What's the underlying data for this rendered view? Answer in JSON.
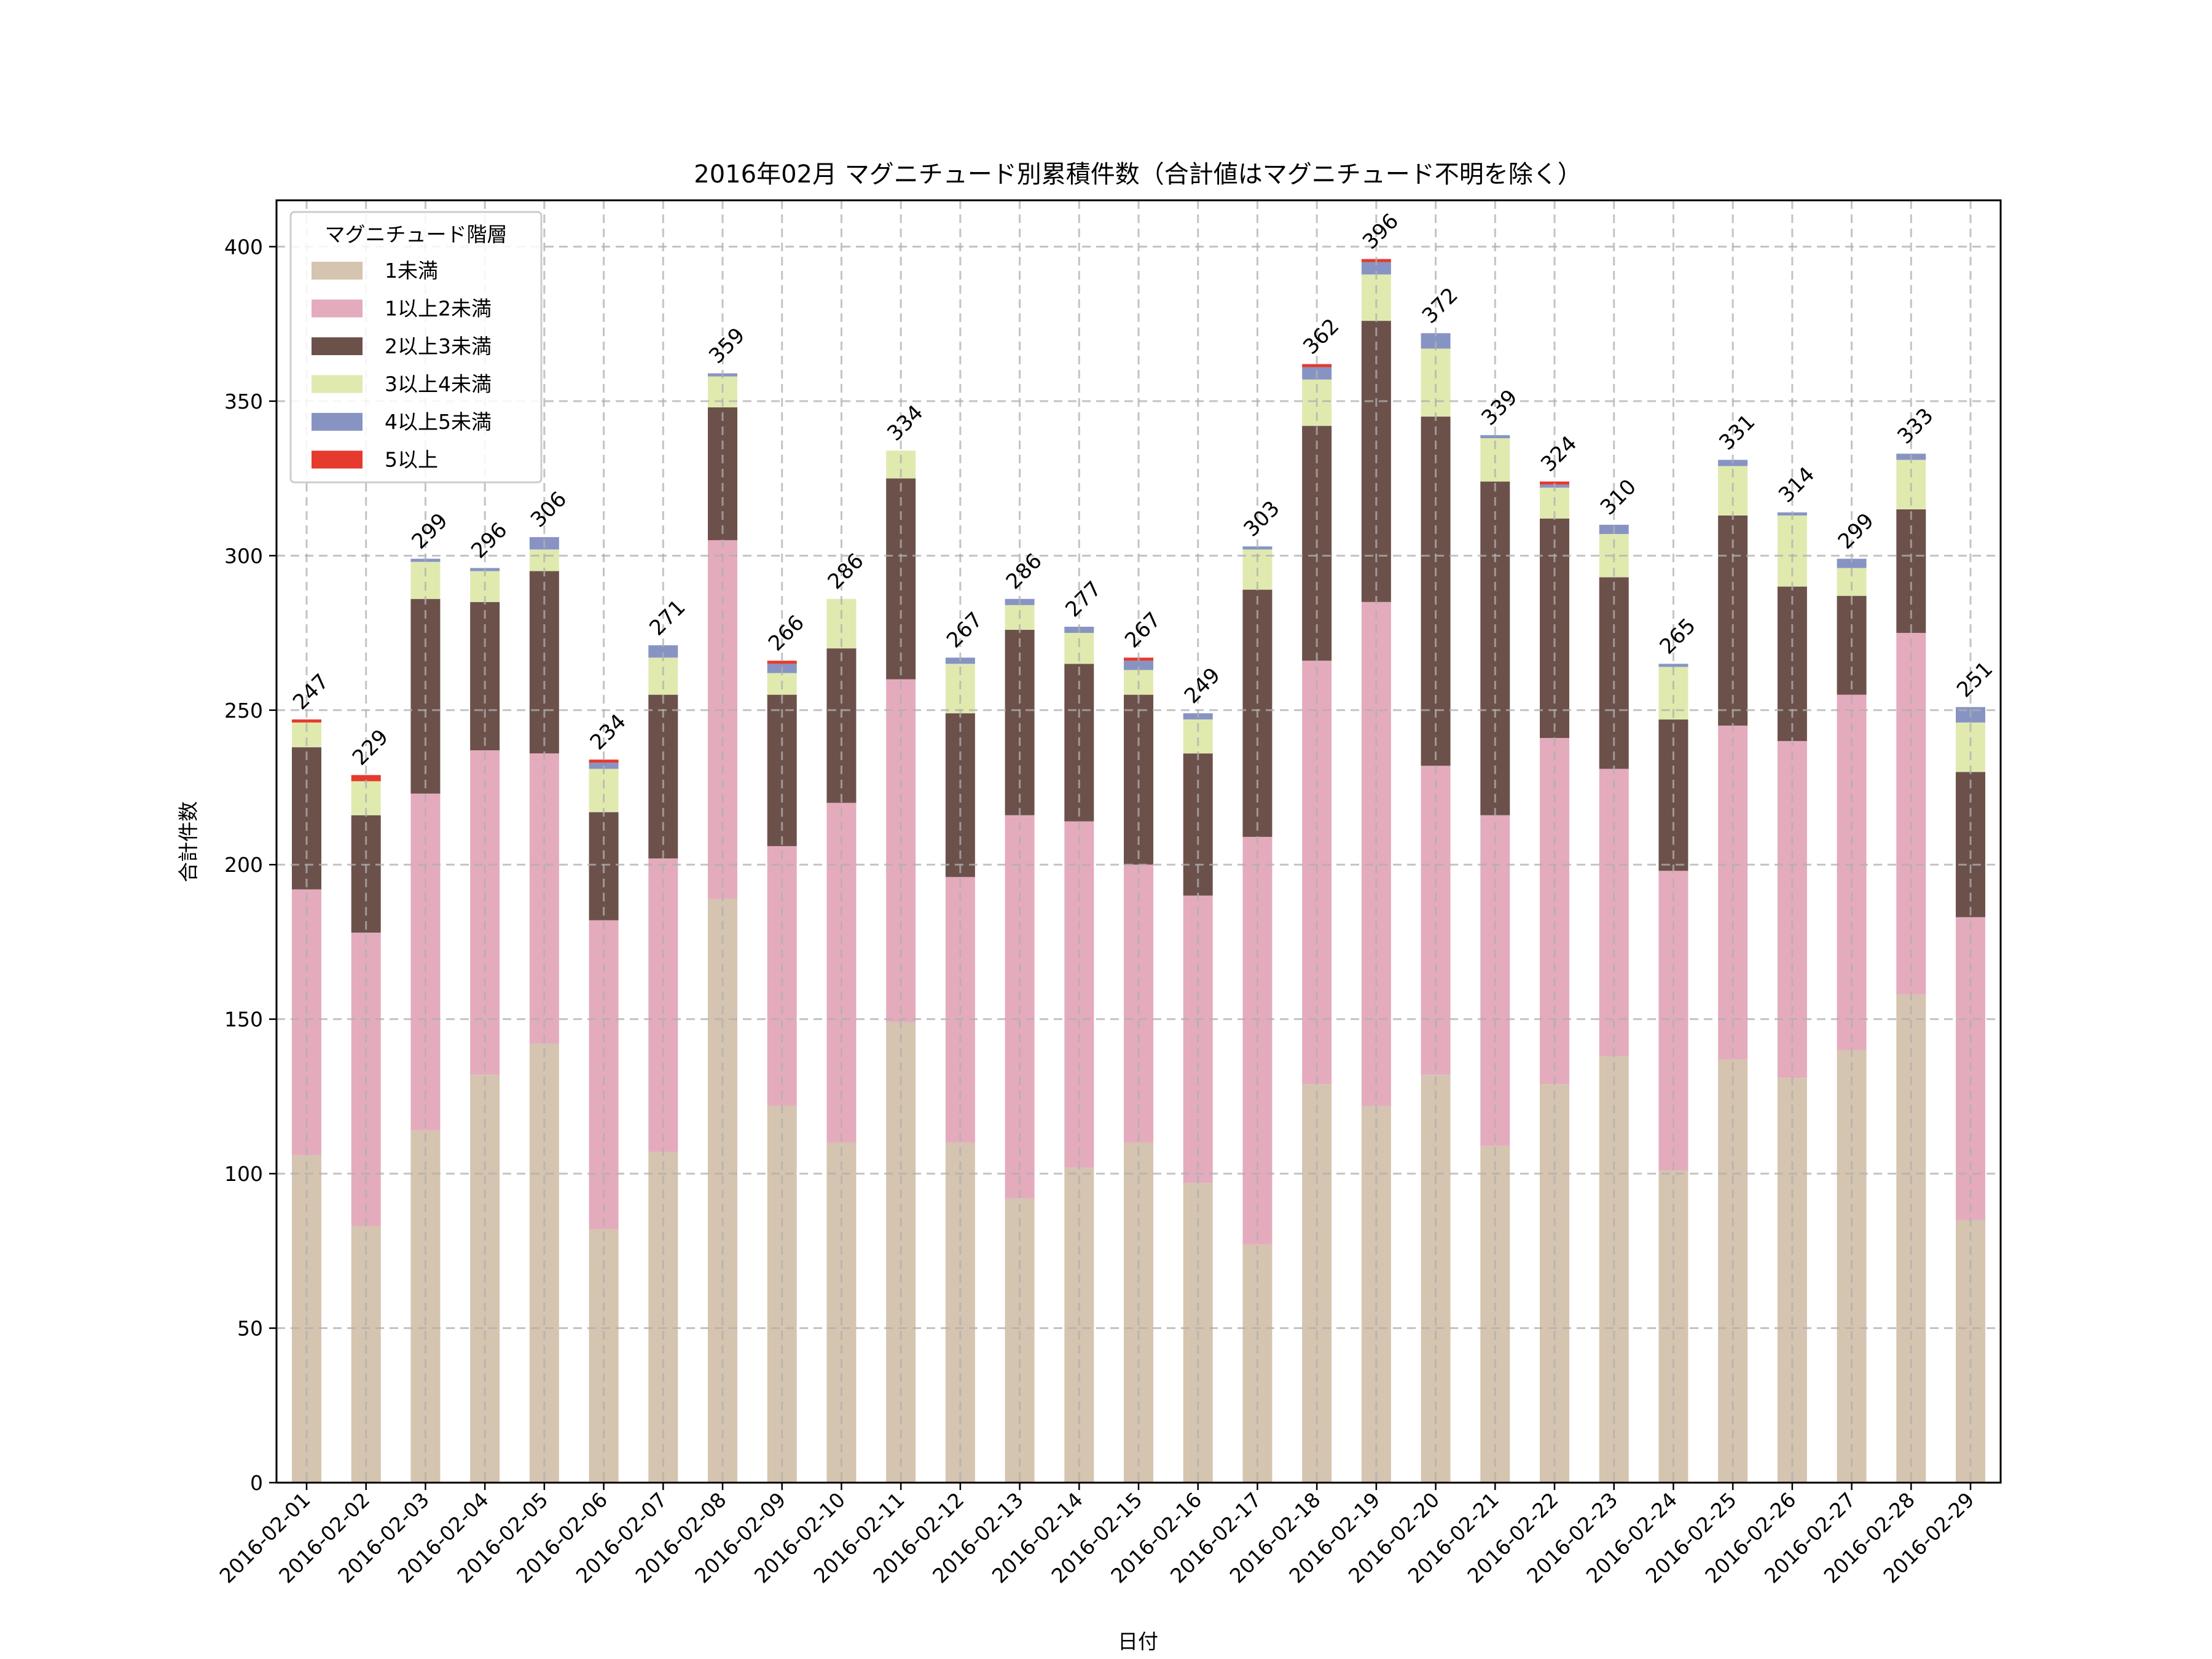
{
  "chart_data": {
    "type": "bar",
    "stacked": true,
    "title": "2016年02月 マグニチュード別累積件数（合計値はマグニチュード不明を除く）",
    "xlabel": "日付",
    "ylabel": "合計件数",
    "ylim": [
      0,
      415
    ],
    "yticks": [
      0,
      50,
      100,
      150,
      200,
      250,
      300,
      350,
      400
    ],
    "grid": true,
    "legend": {
      "title": "マグニチュード階層",
      "position": "top-left"
    },
    "categories": [
      "2016-02-01",
      "2016-02-02",
      "2016-02-03",
      "2016-02-04",
      "2016-02-05",
      "2016-02-06",
      "2016-02-07",
      "2016-02-08",
      "2016-02-09",
      "2016-02-10",
      "2016-02-11",
      "2016-02-12",
      "2016-02-13",
      "2016-02-14",
      "2016-02-15",
      "2016-02-16",
      "2016-02-17",
      "2016-02-18",
      "2016-02-19",
      "2016-02-20",
      "2016-02-21",
      "2016-02-22",
      "2016-02-23",
      "2016-02-24",
      "2016-02-25",
      "2016-02-26",
      "2016-02-27",
      "2016-02-28",
      "2016-02-29"
    ],
    "series": [
      {
        "name": "1未満",
        "color": "#d5c4af",
        "values": [
          106,
          83,
          114,
          132,
          142,
          82,
          107,
          189,
          122,
          110,
          149,
          110,
          92,
          102,
          110,
          97,
          77,
          129,
          122,
          132,
          109,
          129,
          138,
          101,
          137,
          131,
          140,
          158,
          85
        ]
      },
      {
        "name": "1以上2未満",
        "color": "#e4abbd",
        "values": [
          86,
          95,
          109,
          105,
          94,
          100,
          95,
          116,
          84,
          110,
          111,
          86,
          124,
          112,
          90,
          93,
          132,
          137,
          163,
          100,
          107,
          112,
          93,
          97,
          108,
          109,
          115,
          117,
          98
        ]
      },
      {
        "name": "2以上3未満",
        "color": "#6c514b",
        "values": [
          46,
          38,
          63,
          48,
          59,
          35,
          53,
          43,
          49,
          50,
          65,
          53,
          60,
          51,
          55,
          46,
          80,
          76,
          91,
          113,
          108,
          71,
          62,
          49,
          68,
          50,
          32,
          40,
          47
        ]
      },
      {
        "name": "3以上4未満",
        "color": "#e0eaaf",
        "values": [
          8,
          11,
          12,
          10,
          7,
          14,
          12,
          10,
          7,
          16,
          9,
          16,
          8,
          10,
          8,
          11,
          13,
          15,
          15,
          22,
          14,
          10,
          14,
          17,
          16,
          23,
          9,
          16,
          16
        ]
      },
      {
        "name": "4以上5未満",
        "color": "#8794c3",
        "values": [
          0,
          0,
          1,
          1,
          4,
          2,
          4,
          1,
          3,
          0,
          0,
          2,
          2,
          2,
          3,
          2,
          1,
          4,
          4,
          5,
          1,
          1,
          3,
          1,
          2,
          1,
          3,
          2,
          5
        ]
      },
      {
        "name": "5以上",
        "color": "#e53a2d",
        "values": [
          1,
          2,
          0,
          0,
          0,
          1,
          0,
          0,
          1,
          0,
          0,
          0,
          0,
          0,
          1,
          0,
          0,
          1,
          1,
          0,
          0,
          1,
          0,
          0,
          0,
          0,
          0,
          0,
          0
        ]
      }
    ],
    "totals": [
      "247",
      "229",
      "299",
      "296",
      "306",
      "234",
      "271",
      "359",
      "266",
      "286",
      "334",
      "267",
      "286",
      "277",
      "267",
      "249",
      "303",
      "362",
      "396",
      "372",
      "339",
      "324",
      "310",
      "265",
      "331",
      "314",
      "299",
      "333",
      "251"
    ]
  }
}
